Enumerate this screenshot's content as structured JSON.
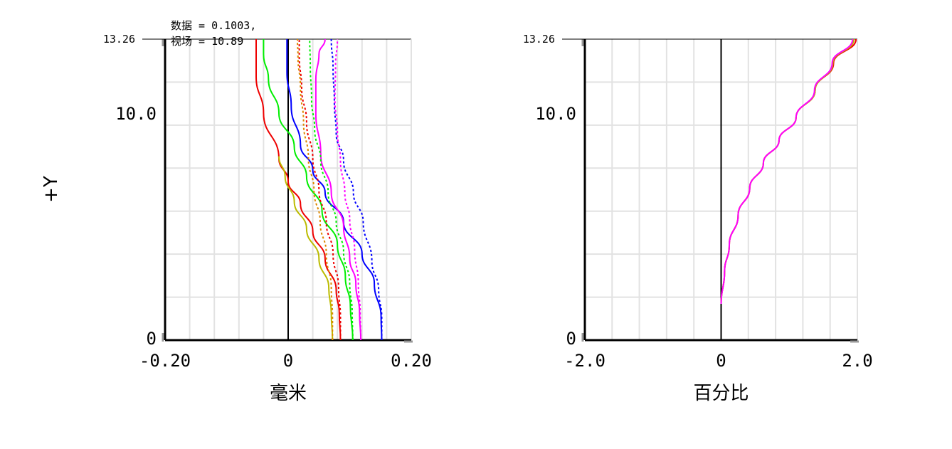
{
  "annotation": {
    "line1": "数据 = 0.1003,",
    "line2": "视场 = 10.89"
  },
  "chart_data": [
    {
      "type": "line",
      "name": "field-curvature",
      "xlabel": "毫米",
      "ylabel": "+Y",
      "xlim": [
        -0.2,
        0.2
      ],
      "ylim": [
        0,
        13.26
      ],
      "x_ticks": [
        "-0.20",
        "0",
        "0.20"
      ],
      "y_ticks": [
        {
          "value": 0,
          "label": "0"
        },
        {
          "value": 10.0,
          "label": "10.0"
        },
        {
          "value": 13.26,
          "label": "13.26"
        }
      ],
      "grid": true,
      "series": [
        {
          "color": "#0000ff",
          "dash": false,
          "points": [
            [
              0.152,
              0
            ],
            [
              0.151,
              1.0
            ],
            [
              0.14,
              2.5
            ],
            [
              0.12,
              3.8
            ],
            [
              0.09,
              5.2
            ],
            [
              0.06,
              6.5
            ],
            [
              0.04,
              7.5
            ],
            [
              0.02,
              8.6
            ],
            [
              0.005,
              10.3
            ],
            [
              -0.002,
              11.8
            ],
            [
              -0.002,
              13.26
            ]
          ]
        },
        {
          "color": "#0000ff",
          "dash": true,
          "points": [
            [
              0.152,
              0
            ],
            [
              0.152,
              1.0
            ],
            [
              0.147,
              2.2
            ],
            [
              0.136,
              3.5
            ],
            [
              0.122,
              5.2
            ],
            [
              0.106,
              6.5
            ],
            [
              0.09,
              7.9
            ],
            [
              0.078,
              9.1
            ],
            [
              0.075,
              10.5
            ],
            [
              0.073,
              12.0
            ],
            [
              0.07,
              13.26
            ]
          ]
        },
        {
          "color": "#ff00ff",
          "dash": false,
          "points": [
            [
              0.118,
              0
            ],
            [
              0.116,
              1.2
            ],
            [
              0.11,
              2.5
            ],
            [
              0.1,
              3.6
            ],
            [
              0.09,
              5.0
            ],
            [
              0.07,
              6.5
            ],
            [
              0.053,
              8.2
            ],
            [
              0.045,
              10.0
            ],
            [
              0.045,
              11.5
            ],
            [
              0.05,
              12.6
            ],
            [
              0.06,
              13.26
            ]
          ]
        },
        {
          "color": "#ff00ff",
          "dash": true,
          "points": [
            [
              0.118,
              0
            ],
            [
              0.117,
              1.2
            ],
            [
              0.114,
              2.5
            ],
            [
              0.108,
              4.0
            ],
            [
              0.1,
              5.3
            ],
            [
              0.092,
              6.5
            ],
            [
              0.085,
              7.9
            ],
            [
              0.08,
              9.2
            ],
            [
              0.076,
              10.6
            ],
            [
              0.077,
              12.1
            ],
            [
              0.08,
              13.26
            ]
          ]
        },
        {
          "color": "#00ee00",
          "dash": false,
          "points": [
            [
              0.105,
              0
            ],
            [
              0.101,
              1.5
            ],
            [
              0.093,
              2.8
            ],
            [
              0.08,
              4.2
            ],
            [
              0.055,
              5.7
            ],
            [
              0.03,
              7.2
            ],
            [
              0.01,
              8.5
            ],
            [
              -0.015,
              10.0
            ],
            [
              -0.032,
              11.5
            ],
            [
              -0.04,
              12.6
            ],
            [
              -0.04,
              13.26
            ]
          ]
        },
        {
          "color": "#00ee00",
          "dash": true,
          "points": [
            [
              0.105,
              0
            ],
            [
              0.104,
              1.2
            ],
            [
              0.1,
              2.5
            ],
            [
              0.09,
              3.9
            ],
            [
              0.078,
              5.2
            ],
            [
              0.065,
              6.5
            ],
            [
              0.053,
              7.9
            ],
            [
              0.043,
              9.3
            ],
            [
              0.038,
              10.6
            ],
            [
              0.036,
              12.1
            ],
            [
              0.035,
              13.26
            ]
          ]
        },
        {
          "color": "#ee0000",
          "dash": false,
          "points": [
            [
              0.085,
              0
            ],
            [
              0.083,
              1.2
            ],
            [
              0.078,
              2.2
            ],
            [
              0.06,
              3.6
            ],
            [
              0.04,
              4.8
            ],
            [
              0.02,
              6.0
            ],
            [
              0.0,
              7.0
            ],
            [
              -0.015,
              8.0
            ],
            [
              -0.04,
              10.0
            ],
            [
              -0.052,
              11.6
            ],
            [
              -0.052,
              13.26
            ]
          ]
        },
        {
          "color": "#ee0000",
          "dash": true,
          "points": [
            [
              0.085,
              0
            ],
            [
              0.085,
              1.0
            ],
            [
              0.082,
              2.3
            ],
            [
              0.073,
              3.8
            ],
            [
              0.062,
              5.2
            ],
            [
              0.05,
              6.6
            ],
            [
              0.04,
              8.0
            ],
            [
              0.03,
              9.6
            ],
            [
              0.022,
              11.1
            ],
            [
              0.018,
              12.5
            ],
            [
              0.018,
              13.26
            ]
          ]
        },
        {
          "color": "#bbbb00",
          "dash": false,
          "points": [
            [
              0.072,
              0
            ],
            [
              0.07,
              1.2
            ],
            [
              0.066,
              2.3
            ],
            [
              0.05,
              3.6
            ],
            [
              0.03,
              4.9
            ],
            [
              0.01,
              6.1
            ],
            [
              -0.005,
              7.2
            ],
            [
              -0.015,
              8.1
            ]
          ]
        },
        {
          "color": "#dd8800",
          "dash": true,
          "points": [
            [
              0.072,
              0
            ],
            [
              0.072,
              1.0
            ],
            [
              0.07,
              2.3
            ],
            [
              0.062,
              3.8
            ],
            [
              0.052,
              5.2
            ],
            [
              0.042,
              6.6
            ],
            [
              0.033,
              8.0
            ],
            [
              0.025,
              9.6
            ],
            [
              0.02,
              11.1
            ],
            [
              0.016,
              12.5
            ],
            [
              0.015,
              13.26
            ]
          ]
        }
      ]
    },
    {
      "type": "line",
      "name": "distortion",
      "xlabel": "百分比",
      "xlim": [
        -2.0,
        2.0
      ],
      "ylim": [
        0,
        13.26
      ],
      "x_ticks": [
        "-2.0",
        "0",
        "2.0"
      ],
      "y_ticks": [
        {
          "value": 0,
          "label": "0"
        },
        {
          "value": 10.0,
          "label": "10.0"
        },
        {
          "value": 13.26,
          "label": "13.26"
        }
      ],
      "grid": true,
      "series": [
        {
          "color": "#ee0000",
          "dash": false,
          "points": [
            [
              0,
              1.6
            ],
            [
              0.05,
              3.0
            ],
            [
              0.12,
              4.2
            ],
            [
              0.25,
              5.5
            ],
            [
              0.42,
              6.7
            ],
            [
              0.62,
              7.8
            ],
            [
              0.85,
              8.8
            ],
            [
              1.1,
              9.8
            ],
            [
              1.38,
              11.0
            ],
            [
              1.65,
              12.2
            ],
            [
              1.98,
              13.26
            ]
          ]
        },
        {
          "color": "#bbbb00",
          "dash": false,
          "points": [
            [
              0,
              1.6
            ],
            [
              0.05,
              3.0
            ],
            [
              0.12,
              4.2
            ],
            [
              0.25,
              5.5
            ],
            [
              0.42,
              6.7
            ],
            [
              0.62,
              7.8
            ],
            [
              0.85,
              8.8
            ],
            [
              1.1,
              9.8
            ],
            [
              1.38,
              11.0
            ],
            [
              1.64,
              12.2
            ],
            [
              1.95,
              13.26
            ]
          ]
        },
        {
          "color": "#ff00ff",
          "dash": false,
          "points": [
            [
              0,
              1.6
            ],
            [
              0.05,
              3.0
            ],
            [
              0.12,
              4.2
            ],
            [
              0.25,
              5.5
            ],
            [
              0.42,
              6.7
            ],
            [
              0.62,
              7.8
            ],
            [
              0.85,
              8.8
            ],
            [
              1.1,
              9.8
            ],
            [
              1.37,
              11.0
            ],
            [
              1.63,
              12.2
            ],
            [
              1.93,
              13.26
            ]
          ]
        }
      ]
    }
  ]
}
